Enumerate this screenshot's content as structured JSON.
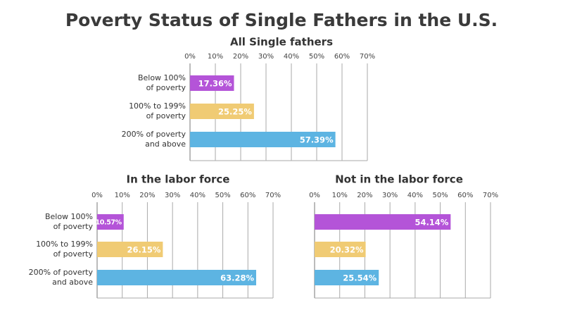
{
  "title": "Poverty Status of Single Fathers in the U.S.",
  "chart_data": [
    {
      "type": "bar",
      "orientation": "horizontal",
      "title": "All Single fathers",
      "categories": [
        "Below 100%\nof poverty",
        "100% to 199%\nof poverty",
        "200% of poverty\nand above"
      ],
      "values": [
        17.36,
        25.25,
        57.39
      ],
      "value_labels": [
        "17.36%",
        "25.25%",
        "57.39%"
      ],
      "colors": [
        "#b454d8",
        "#f0cb74",
        "#5db4e2"
      ],
      "xlim": [
        0,
        70
      ],
      "xticks": [
        {
          "value": 0,
          "label": "0%"
        },
        {
          "value": 10,
          "label": "10%"
        },
        {
          "value": 20,
          "label": "20%"
        },
        {
          "value": 30,
          "label": "30%"
        },
        {
          "value": 40,
          "label": "40%"
        },
        {
          "value": 50,
          "label": "50%"
        },
        {
          "value": 60,
          "label": "60%"
        },
        {
          "value": 70,
          "label": "70%"
        }
      ],
      "grid": true
    },
    {
      "type": "bar",
      "orientation": "horizontal",
      "title": "In the labor force",
      "categories": [
        "Below 100%\nof poverty",
        "100% to 199%\nof poverty",
        "200% of poverty\nand above"
      ],
      "values": [
        10.57,
        26.15,
        63.28
      ],
      "value_labels": [
        "10.57%",
        "26.15%",
        "63.28%"
      ],
      "colors": [
        "#b454d8",
        "#f0cb74",
        "#5db4e2"
      ],
      "xlim": [
        0,
        70
      ],
      "xticks": [
        {
          "value": 0,
          "label": "0%"
        },
        {
          "value": 10,
          "label": "10%"
        },
        {
          "value": 20,
          "label": "20%"
        },
        {
          "value": 30,
          "label": "30%"
        },
        {
          "value": 40,
          "label": "40%"
        },
        {
          "value": 50,
          "label": "50%"
        },
        {
          "value": 60,
          "label": "60%"
        },
        {
          "value": 70,
          "label": "70%"
        }
      ],
      "grid": true
    },
    {
      "type": "bar",
      "orientation": "horizontal",
      "title": "Not in the labor force",
      "values": [
        54.14,
        20.32,
        25.54
      ],
      "value_labels": [
        "54.14%",
        "20.32%",
        "25.54%"
      ],
      "colors": [
        "#b454d8",
        "#f0cb74",
        "#5db4e2"
      ],
      "xlim": [
        0,
        70
      ],
      "xticks": [
        {
          "value": 0,
          "label": "0%"
        },
        {
          "value": 10,
          "label": "10%"
        },
        {
          "value": 20,
          "label": "20%"
        },
        {
          "value": 30,
          "label": "30%"
        },
        {
          "value": 40,
          "label": "40%"
        },
        {
          "value": 50,
          "label": "50%"
        },
        {
          "value": 60,
          "label": "60%"
        },
        {
          "value": 70,
          "label": "70%"
        }
      ],
      "grid": true
    }
  ]
}
